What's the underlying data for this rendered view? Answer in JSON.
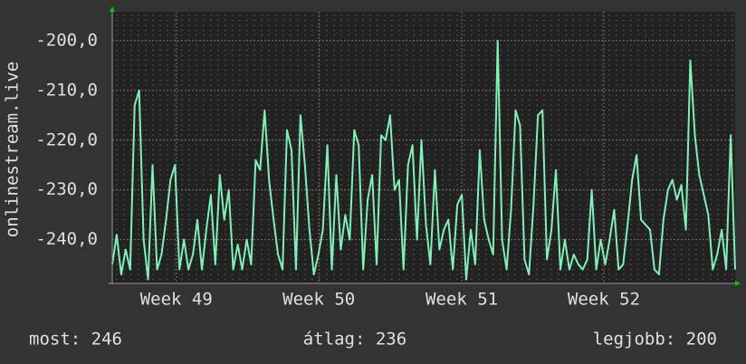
{
  "chart_data": {
    "type": "line",
    "ylabel": "onlinestream.live",
    "color": "#80f0b8",
    "values": [
      -245,
      -239,
      -247,
      -242,
      -246,
      -213,
      -210,
      -240,
      -248,
      -225,
      -246,
      -243,
      -236,
      -228,
      -225,
      -246,
      -240,
      -246,
      -243,
      -236,
      -246,
      -238,
      -231,
      -245,
      -227,
      -236,
      -230,
      -246,
      -241,
      -246,
      -240,
      -245,
      -224,
      -226,
      -214,
      -228,
      -236,
      -243,
      -246,
      -218,
      -222,
      -246,
      -215,
      -225,
      -238,
      -247,
      -243,
      -238,
      -221,
      -246,
      -227,
      -242,
      -235,
      -240,
      -218,
      -221,
      -246,
      -232,
      -227,
      -245,
      -219,
      -220,
      -215,
      -230,
      -228,
      -246,
      -225,
      -221,
      -240,
      -220,
      -237,
      -245,
      -226,
      -242,
      -238,
      -236,
      -246,
      -233,
      -231,
      -248,
      -238,
      -245,
      -222,
      -236,
      -240,
      -243,
      -200,
      -240,
      -246,
      -234,
      -214,
      -217,
      -244,
      -247,
      -233,
      -215,
      -214,
      -244,
      -238,
      -226,
      -246,
      -240,
      -246,
      -243,
      -245,
      -246,
      -244,
      -230,
      -246,
      -240,
      -245,
      -240,
      -234,
      -246,
      -245,
      -237,
      -228,
      -223,
      -236,
      -237,
      -238,
      -246,
      -247,
      -236,
      -230,
      -228,
      -232,
      -229,
      -238,
      -204,
      -219,
      -227,
      -231,
      -235,
      -246,
      -243,
      -238,
      -246,
      -219,
      -246
    ],
    "xlim": [
      0,
      139
    ],
    "xticks": [
      {
        "value": 14.3,
        "label": "Week 49"
      },
      {
        "value": 46.1,
        "label": "Week 50"
      },
      {
        "value": 78,
        "label": "Week 51"
      },
      {
        "value": 109.7,
        "label": "Week 52"
      }
    ],
    "ylim": [
      -248.8,
      -194.2
    ],
    "yticks": [
      {
        "value": -200,
        "label": "-200,0"
      },
      {
        "value": -210,
        "label": "-210,0"
      },
      {
        "value": -220,
        "label": "-220,0"
      },
      {
        "value": -230,
        "label": "-230,0"
      },
      {
        "value": -240,
        "label": "-240,0"
      }
    ],
    "grid": true,
    "legend": [
      "most: 246",
      "átlag: 236",
      "legjobb: 200"
    ]
  }
}
